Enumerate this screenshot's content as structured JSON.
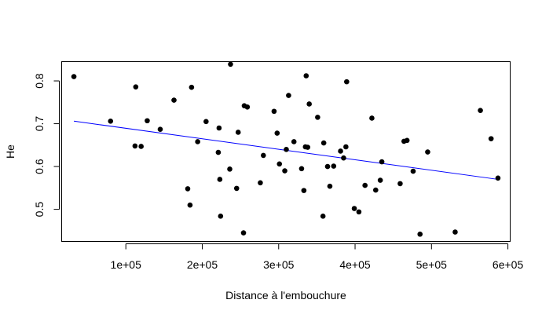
{
  "chart_data": {
    "type": "scatter",
    "title": "",
    "xlabel": "Distance à l'embouchure",
    "ylabel": "He",
    "xlim": [
      16000,
      603000
    ],
    "ylim": [
      0.425,
      0.845
    ],
    "grid": false,
    "x_ticks": [
      {
        "value": 100000,
        "label": "1e+05"
      },
      {
        "value": 200000,
        "label": "2e+05"
      },
      {
        "value": 300000,
        "label": "3e+05"
      },
      {
        "value": 400000,
        "label": "4e+05"
      },
      {
        "value": 500000,
        "label": "5e+05"
      },
      {
        "value": 600000,
        "label": "6e+05"
      }
    ],
    "y_ticks": [
      {
        "value": 0.5,
        "label": "0.5"
      },
      {
        "value": 0.6,
        "label": "0.6"
      },
      {
        "value": 0.7,
        "label": "0.7"
      },
      {
        "value": 0.8,
        "label": "0.8"
      }
    ],
    "points": [
      [
        32000,
        0.81
      ],
      [
        80000,
        0.706
      ],
      [
        112000,
        0.648
      ],
      [
        113000,
        0.786
      ],
      [
        120000,
        0.647
      ],
      [
        128000,
        0.707
      ],
      [
        145000,
        0.687
      ],
      [
        163000,
        0.755
      ],
      [
        181000,
        0.548
      ],
      [
        184000,
        0.51
      ],
      [
        186000,
        0.785
      ],
      [
        194000,
        0.658
      ],
      [
        205000,
        0.705
      ],
      [
        221000,
        0.633
      ],
      [
        222000,
        0.69
      ],
      [
        223000,
        0.57
      ],
      [
        224000,
        0.484
      ],
      [
        236000,
        0.594
      ],
      [
        237000,
        0.839
      ],
      [
        245000,
        0.549
      ],
      [
        247000,
        0.68
      ],
      [
        254000,
        0.445
      ],
      [
        255000,
        0.742
      ],
      [
        259000,
        0.739
      ],
      [
        276000,
        0.562
      ],
      [
        280000,
        0.626
      ],
      [
        294000,
        0.729
      ],
      [
        298000,
        0.678
      ],
      [
        301000,
        0.606
      ],
      [
        308000,
        0.59
      ],
      [
        310000,
        0.64
      ],
      [
        313000,
        0.766
      ],
      [
        320000,
        0.658
      ],
      [
        330000,
        0.595
      ],
      [
        333000,
        0.544
      ],
      [
        335000,
        0.646
      ],
      [
        336000,
        0.812
      ],
      [
        338000,
        0.645
      ],
      [
        340000,
        0.746
      ],
      [
        351000,
        0.715
      ],
      [
        358000,
        0.484
      ],
      [
        359000,
        0.655
      ],
      [
        364000,
        0.6
      ],
      [
        367000,
        0.554
      ],
      [
        372000,
        0.601
      ],
      [
        381000,
        0.636
      ],
      [
        385000,
        0.62
      ],
      [
        388000,
        0.646
      ],
      [
        389000,
        0.798
      ],
      [
        399000,
        0.502
      ],
      [
        405000,
        0.494
      ],
      [
        413000,
        0.556
      ],
      [
        422000,
        0.713
      ],
      [
        427000,
        0.545
      ],
      [
        433000,
        0.568
      ],
      [
        435000,
        0.611
      ],
      [
        459000,
        0.56
      ],
      [
        464000,
        0.659
      ],
      [
        468000,
        0.661
      ],
      [
        476000,
        0.589
      ],
      [
        485000,
        0.442
      ],
      [
        495000,
        0.634
      ],
      [
        531000,
        0.447
      ],
      [
        564000,
        0.731
      ],
      [
        578000,
        0.665
      ],
      [
        587000,
        0.573
      ]
    ],
    "regression_line": {
      "color": "#0000ff",
      "from": [
        32000,
        0.706
      ],
      "to": [
        587000,
        0.57
      ]
    },
    "point_color": "#000000"
  }
}
